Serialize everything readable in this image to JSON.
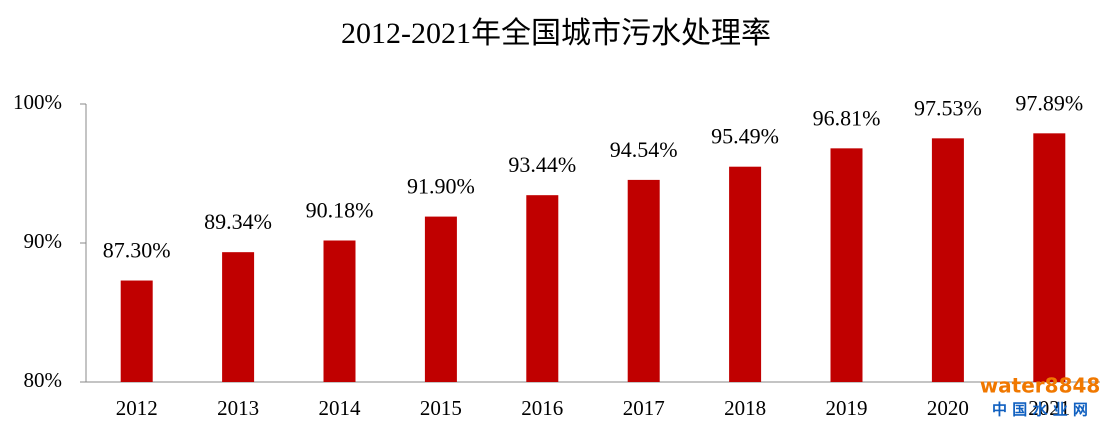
{
  "chart_data": {
    "type": "bar",
    "title": "2012-2021年全国城市污水处理率",
    "categories": [
      "2012",
      "2013",
      "2014",
      "2015",
      "2016",
      "2017",
      "2018",
      "2019",
      "2020",
      "2021"
    ],
    "values": [
      87.3,
      89.34,
      90.18,
      91.9,
      93.44,
      94.54,
      95.49,
      96.81,
      97.53,
      97.89
    ],
    "value_labels": [
      "87.30%",
      "89.34%",
      "90.18%",
      "91.90%",
      "93.44%",
      "94.54%",
      "95.49%",
      "96.81%",
      "97.53%",
      "97.89%"
    ],
    "color": "#c00000",
    "ylim": [
      80,
      100
    ],
    "yticks": [
      {
        "value": 80,
        "label": "80%"
      },
      {
        "value": 90,
        "label": "90%"
      },
      {
        "value": 100,
        "label": "100%"
      }
    ],
    "grid": false
  },
  "watermark": {
    "site": "water8848",
    "name": "中 国 水 业 网"
  }
}
